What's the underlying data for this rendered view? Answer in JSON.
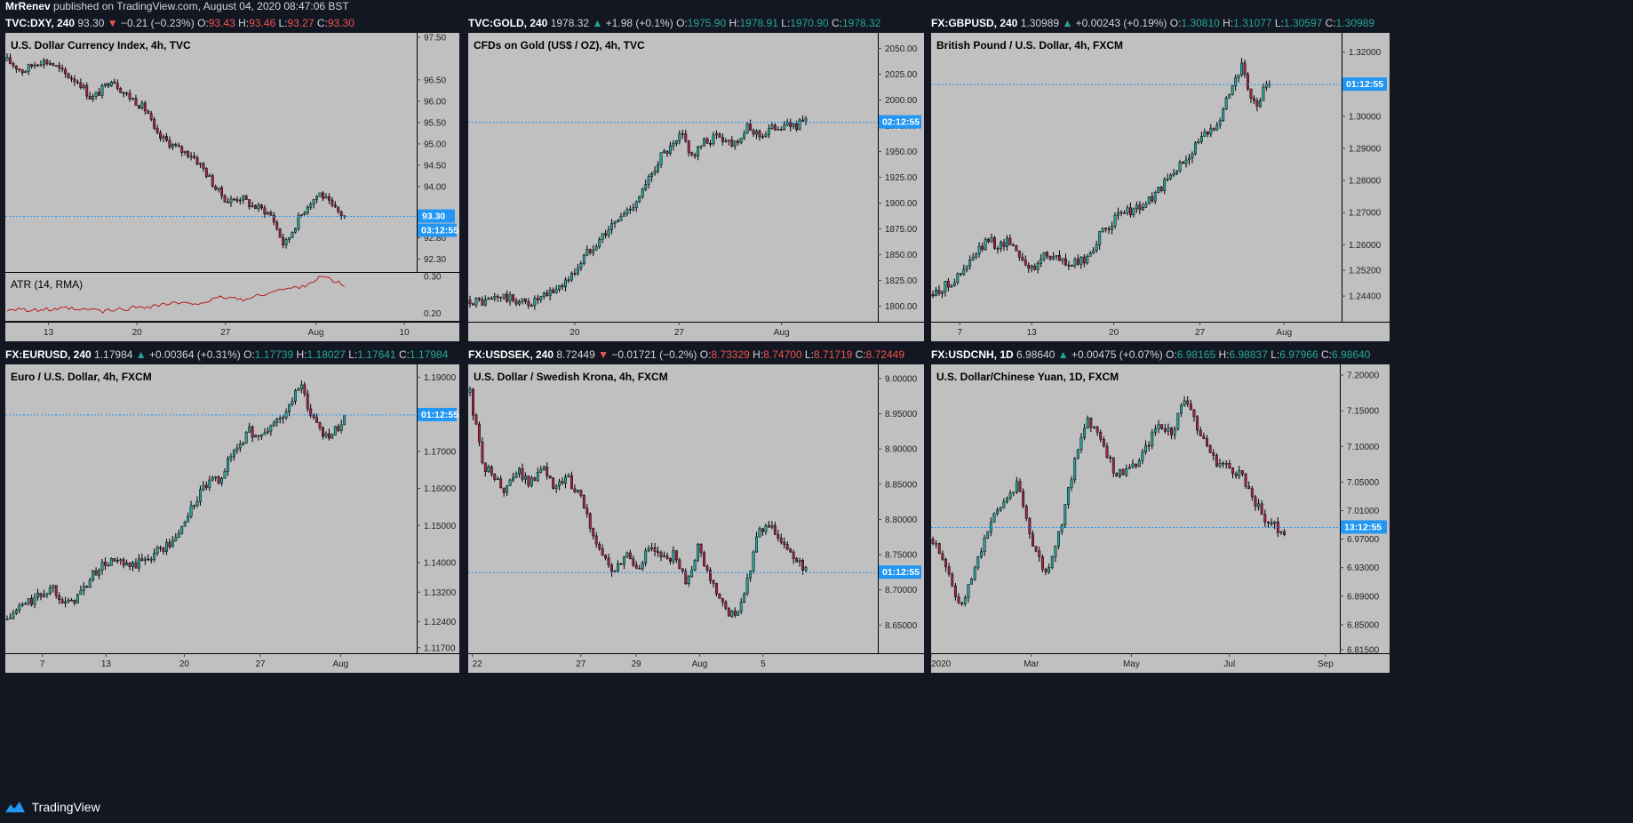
{
  "header": {
    "author": "MrRenev",
    "published_text": "published on TradingView.com, August 04, 2020 08:47:06 BST"
  },
  "footer": {
    "brand": "TradingView"
  },
  "colors": {
    "background": "#131722",
    "pane": "#c0c0c0",
    "up_candle": "#26a69a",
    "down_candle": "#a3234a",
    "wick": "#000000",
    "price_line": "#2196f3",
    "price_tag": "#2196f3",
    "atr_line": "#b71c1c",
    "header_up": "#26a69a",
    "header_down": "#ef5350"
  },
  "panels": [
    {
      "header": {
        "symbol": "TVC:DXY, 240",
        "last": "93.30",
        "arrow": "▼",
        "change": "−0.21 (−0.23%)",
        "direction": "down",
        "open_label": "O:",
        "open": "93.43",
        "high_label": "H:",
        "high": "93.46",
        "low_label": "L:",
        "low": "93.27",
        "close_label": "C:",
        "close": "93.30"
      },
      "price_tag": "93.30",
      "countdown_tag": "03:12:55"
    },
    {
      "header": {
        "symbol": "TVC:GOLD, 240",
        "last": "1978.32",
        "arrow": "▲",
        "change": "+1.98 (+0.1%)",
        "direction": "up",
        "open_label": "O:",
        "open": "1975.90",
        "high_label": "H:",
        "high": "1978.91",
        "low_label": "L:",
        "low": "1970.90",
        "close_label": "C:",
        "close": "1978.32"
      },
      "price_tag": "",
      "countdown_tag": "02:12:55"
    },
    {
      "header": {
        "symbol": "FX:GBPUSD, 240",
        "last": "1.30989",
        "arrow": "▲",
        "change": "+0.00243 (+0.19%)",
        "direction": "up",
        "open_label": "O:",
        "open": "1.30810",
        "high_label": "H:",
        "high": "1.31077",
        "low_label": "L:",
        "low": "1.30597",
        "close_label": "C:",
        "close": "1.30989"
      },
      "price_tag": "",
      "countdown_tag": "01:12:55"
    },
    {
      "header": {
        "symbol": "FX:EURUSD, 240",
        "last": "1.17984",
        "arrow": "▲",
        "change": "+0.00364 (+0.31%)",
        "direction": "up",
        "open_label": "O:",
        "open": "1.17739",
        "high_label": "H:",
        "high": "1.18027",
        "low_label": "L:",
        "low": "1.17641",
        "close_label": "C:",
        "close": "1.17984"
      },
      "price_tag": "",
      "countdown_tag": "01:12:55"
    },
    {
      "header": {
        "symbol": "FX:USDSEK, 240",
        "last": "8.72449",
        "arrow": "▼",
        "change": "−0.01721 (−0.2%)",
        "direction": "down",
        "open_label": "O:",
        "open": "8.73329",
        "high_label": "H:",
        "high": "8.74700",
        "low_label": "L:",
        "low": "8.71719",
        "close_label": "C:",
        "close": "8.72449"
      },
      "price_tag": "",
      "countdown_tag": "01:12:55"
    },
    {
      "header": {
        "symbol": "FX:USDCNH, 1D",
        "last": "6.98640",
        "arrow": "▲",
        "change": "+0.00475 (+0.07%)",
        "direction": "up",
        "open_label": "O:",
        "open": "6.98165",
        "high_label": "H:",
        "high": "6.98837",
        "low_label": "L:",
        "low": "6.97966",
        "close_label": "C:",
        "close": "6.98640"
      },
      "price_tag": "",
      "countdown_tag": "13:12:55"
    }
  ],
  "chart_data": [
    {
      "type": "candlestick",
      "title": "U.S. Dollar Currency Index, 4h, TVC",
      "y_ticks": [
        "97.50",
        "96.50",
        "96.00",
        "95.50",
        "95.00",
        "94.50",
        "94.00",
        "92.80",
        "92.30"
      ],
      "ylim": [
        92.0,
        97.6
      ],
      "x_ticks": [
        "13",
        "20",
        "27",
        "Aug",
        "10"
      ],
      "last_price": 93.3,
      "points": [
        [
          0,
          96.95
        ],
        [
          4,
          96.7
        ],
        [
          8,
          96.95
        ],
        [
          11,
          96.9
        ],
        [
          14,
          96.65
        ],
        [
          18,
          96.45
        ],
        [
          21,
          96.05
        ],
        [
          24,
          96.3
        ],
        [
          26,
          96.55
        ],
        [
          29,
          96.2
        ],
        [
          32,
          96.0
        ],
        [
          35,
          95.75
        ],
        [
          37,
          95.2
        ],
        [
          40,
          95.05
        ],
        [
          43,
          94.85
        ],
        [
          46,
          94.75
        ],
        [
          49,
          94.4
        ],
        [
          52,
          93.95
        ],
        [
          55,
          93.65
        ],
        [
          58,
          93.75
        ],
        [
          61,
          93.55
        ],
        [
          64,
          93.45
        ],
        [
          66,
          93.3
        ],
        [
          69,
          92.6
        ],
        [
          72,
          93.15
        ],
        [
          75,
          93.6
        ],
        [
          78,
          93.85
        ],
        [
          81,
          93.5
        ],
        [
          84,
          93.3
        ]
      ],
      "indicator": {
        "name": "ATR (14, RMA)",
        "y_ticks": [
          "0.30",
          "0.20"
        ],
        "ylim": [
          0.18,
          0.31
        ],
        "values": [
          0.21,
          0.215,
          0.205,
          0.212,
          0.208,
          0.215,
          0.207,
          0.212,
          0.205,
          0.21,
          0.213,
          0.218,
          0.22,
          0.225,
          0.228,
          0.225,
          0.23,
          0.235,
          0.245,
          0.24,
          0.238,
          0.25,
          0.26,
          0.265,
          0.27,
          0.28,
          0.3,
          0.29,
          0.275
        ]
      }
    },
    {
      "type": "candlestick",
      "title": "CFDs on Gold (US$ / OZ), 4h, TVC",
      "y_ticks": [
        "2050.00",
        "2025.00",
        "2000.00",
        "1975.00",
        "1950.00",
        "1925.00",
        "1900.00",
        "1875.00",
        "1850.00",
        "1825.00",
        "1800.00"
      ],
      "ylim": [
        1785,
        2065
      ],
      "x_ticks": [
        "20",
        "27",
        "Aug"
      ],
      "last_price": 1978.32,
      "points": [
        [
          0,
          1806
        ],
        [
          4,
          1804
        ],
        [
          8,
          1810
        ],
        [
          12,
          1806
        ],
        [
          16,
          1803
        ],
        [
          20,
          1808
        ],
        [
          24,
          1818
        ],
        [
          28,
          1830
        ],
        [
          32,
          1852
        ],
        [
          36,
          1868
        ],
        [
          40,
          1882
        ],
        [
          44,
          1896
        ],
        [
          48,
          1915
        ],
        [
          52,
          1945
        ],
        [
          56,
          1955
        ],
        [
          58,
          1967
        ],
        [
          61,
          1945
        ],
        [
          64,
          1958
        ],
        [
          68,
          1966
        ],
        [
          72,
          1958
        ],
        [
          76,
          1972
        ],
        [
          80,
          1966
        ],
        [
          84,
          1975
        ],
        [
          88,
          1975
        ],
        [
          92,
          1978
        ]
      ]
    },
    {
      "type": "candlestick",
      "title": "British Pound / U.S. Dollar, 4h, FXCM",
      "y_ticks": [
        "1.32000",
        "1.31000",
        "1.30000",
        "1.29000",
        "1.28000",
        "1.27000",
        "1.26000",
        "1.25200",
        "1.24400"
      ],
      "ylim": [
        1.236,
        1.326
      ],
      "x_ticks": [
        "7",
        "13",
        "20",
        "27",
        "Aug"
      ],
      "last_price": 1.30989,
      "points": [
        [
          0,
          1.2445
        ],
        [
          4,
          1.2475
        ],
        [
          8,
          1.2505
        ],
        [
          12,
          1.2565
        ],
        [
          16,
          1.2615
        ],
        [
          19,
          1.2595
        ],
        [
          22,
          1.2615
        ],
        [
          26,
          1.2555
        ],
        [
          29,
          1.2515
        ],
        [
          32,
          1.2575
        ],
        [
          36,
          1.2555
        ],
        [
          40,
          1.2535
        ],
        [
          44,
          1.2555
        ],
        [
          48,
          1.2625
        ],
        [
          52,
          1.2675
        ],
        [
          56,
          1.2705
        ],
        [
          60,
          1.2715
        ],
        [
          64,
          1.2755
        ],
        [
          68,
          1.2805
        ],
        [
          72,
          1.2855
        ],
        [
          76,
          1.2915
        ],
        [
          80,
          1.2955
        ],
        [
          83,
          1.3005
        ],
        [
          86,
          1.3095
        ],
        [
          89,
          1.3155
        ],
        [
          91,
          1.3075
        ],
        [
          93,
          1.3025
        ],
        [
          95,
          1.3075
        ],
        [
          97,
          1.3099
        ]
      ]
    },
    {
      "type": "candlestick",
      "title": "Euro / U.S. Dollar, 4h, FXCM",
      "y_ticks": [
        "1.19000",
        "1.18000",
        "1.17000",
        "1.16000",
        "1.15000",
        "1.14000",
        "1.13200",
        "1.12400",
        "1.11700"
      ],
      "ylim": [
        1.1155,
        1.1935
      ],
      "x_ticks": [
        "7",
        "13",
        "20",
        "27",
        "Aug"
      ],
      "last_price": 1.17984,
      "points": [
        [
          0,
          1.1245
        ],
        [
          4,
          1.1285
        ],
        [
          8,
          1.1305
        ],
        [
          12,
          1.1335
        ],
        [
          16,
          1.1285
        ],
        [
          20,
          1.1325
        ],
        [
          24,
          1.1385
        ],
        [
          28,
          1.1405
        ],
        [
          32,
          1.1385
        ],
        [
          36,
          1.1405
        ],
        [
          40,
          1.1435
        ],
        [
          44,
          1.1455
        ],
        [
          48,
          1.1535
        ],
        [
          52,
          1.1605
        ],
        [
          56,
          1.1625
        ],
        [
          60,
          1.1705
        ],
        [
          64,
          1.1755
        ],
        [
          67,
          1.1735
        ],
        [
          70,
          1.1775
        ],
        [
          74,
          1.1805
        ],
        [
          77,
          1.1885
        ],
        [
          80,
          1.1805
        ],
        [
          83,
          1.1755
        ],
        [
          86,
          1.1745
        ],
        [
          89,
          1.1798
        ]
      ]
    },
    {
      "type": "candlestick",
      "title": "U.S. Dollar / Swedish Krona, 4h, FXCM",
      "y_ticks": [
        "9.00000",
        "8.95000",
        "8.90000",
        "8.85000",
        "8.80000",
        "8.75000",
        "8.70000",
        "8.65000"
      ],
      "ylim": [
        8.61,
        9.02
      ],
      "x_ticks": [
        "22",
        "27",
        "29",
        "Aug",
        "5"
      ],
      "last_price": 8.72449,
      "points": [
        [
          0,
          8.98
        ],
        [
          3,
          8.88
        ],
        [
          6,
          8.86
        ],
        [
          9,
          8.84
        ],
        [
          12,
          8.87
        ],
        [
          15,
          8.85
        ],
        [
          18,
          8.88
        ],
        [
          21,
          8.84
        ],
        [
          24,
          8.86
        ],
        [
          27,
          8.84
        ],
        [
          30,
          8.79
        ],
        [
          33,
          8.75
        ],
        [
          36,
          8.72
        ],
        [
          39,
          8.75
        ],
        [
          42,
          8.73
        ],
        [
          45,
          8.76
        ],
        [
          48,
          8.74
        ],
        [
          51,
          8.75
        ],
        [
          54,
          8.71
        ],
        [
          57,
          8.76
        ],
        [
          60,
          8.72
        ],
        [
          63,
          8.68
        ],
        [
          66,
          8.66
        ],
        [
          69,
          8.7
        ],
        [
          72,
          8.78
        ],
        [
          75,
          8.79
        ],
        [
          78,
          8.77
        ],
        [
          81,
          8.74
        ],
        [
          84,
          8.73
        ]
      ]
    },
    {
      "type": "candlestick",
      "title": "U.S. Dollar/Chinese Yuan, 1D, FXCM",
      "y_ticks": [
        "7.20000",
        "7.15000",
        "7.10000",
        "7.05000",
        "7.01000",
        "6.97000",
        "6.93000",
        "6.89000",
        "6.85000",
        "6.81500"
      ],
      "ylim": [
        6.81,
        7.215
      ],
      "x_ticks": [
        "2020",
        "Mar",
        "May",
        "Jul",
        "Sep"
      ],
      "last_price": 6.9864,
      "points": [
        [
          0,
          6.97
        ],
        [
          4,
          6.93
        ],
        [
          8,
          6.87
        ],
        [
          12,
          6.93
        ],
        [
          16,
          6.99
        ],
        [
          20,
          7.02
        ],
        [
          24,
          7.05
        ],
        [
          28,
          6.97
        ],
        [
          32,
          6.92
        ],
        [
          36,
          6.98
        ],
        [
          40,
          7.07
        ],
        [
          44,
          7.14
        ],
        [
          48,
          7.11
        ],
        [
          52,
          7.06
        ],
        [
          56,
          7.07
        ],
        [
          60,
          7.09
        ],
        [
          64,
          7.13
        ],
        [
          68,
          7.12
        ],
        [
          72,
          7.17
        ],
        [
          76,
          7.12
        ],
        [
          80,
          7.08
        ],
        [
          84,
          7.07
        ],
        [
          88,
          7.06
        ],
        [
          91,
          7.03
        ],
        [
          94,
          7.0
        ],
        [
          97,
          6.99
        ],
        [
          100,
          6.98
        ]
      ]
    }
  ]
}
